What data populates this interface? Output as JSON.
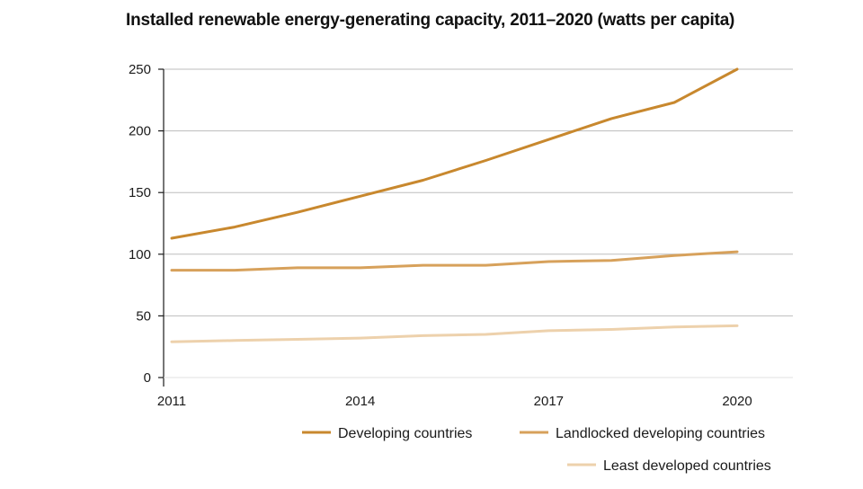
{
  "chart_data": {
    "type": "line",
    "title": "Installed renewable energy-generating capacity, 2011–2020 (watts per capita)",
    "xlabel": "",
    "ylabel": "",
    "x": [
      2011,
      2012,
      2013,
      2014,
      2015,
      2016,
      2017,
      2018,
      2019,
      2020
    ],
    "x_tick_labels": [
      "2011",
      "2014",
      "2017",
      "2020"
    ],
    "x_tick_values": [
      2011,
      2014,
      2017,
      2020
    ],
    "y_tick_labels": [
      "0",
      "50",
      "100",
      "150",
      "200",
      "250"
    ],
    "y_tick_values": [
      0,
      50,
      100,
      150,
      200,
      250
    ],
    "ylim": [
      0,
      250
    ],
    "grid": true,
    "legend_position": "bottom-right",
    "series": [
      {
        "name": "Developing countries",
        "color": "#C8882E",
        "values": [
          113,
          122,
          134,
          147,
          160,
          176,
          193,
          210,
          223,
          250
        ]
      },
      {
        "name": "Landlocked developing countries",
        "color": "#D7A15B",
        "values": [
          87,
          87,
          89,
          89,
          91,
          91,
          94,
          95,
          99,
          102
        ]
      },
      {
        "name": "Least developed countries",
        "color": "#EDD1AC",
        "values": [
          29,
          30,
          31,
          32,
          34,
          35,
          38,
          39,
          41,
          42
        ]
      }
    ]
  }
}
